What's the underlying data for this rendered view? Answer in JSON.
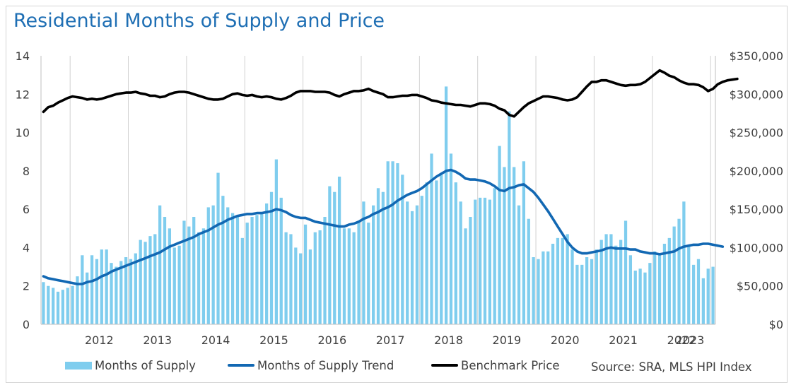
{
  "title": "Residential Months of Supply and Price",
  "source": "Source: SRA, MLS HPI Index",
  "chart_data": {
    "type": "bar+line",
    "title": "Residential Months of Supply and Price",
    "x_ticks": [
      "2012",
      "2013",
      "2014",
      "2015",
      "2016",
      "2017",
      "2018",
      "2019",
      "2020",
      "2021",
      "2022",
      "2023"
    ],
    "y_left": {
      "range": [
        0,
        14
      ],
      "ticks": [
        "0",
        "2",
        "4",
        "6",
        "8",
        "10",
        "12",
        "14"
      ]
    },
    "y_right": {
      "range": [
        0,
        350000
      ],
      "ticks": [
        "$0",
        "$50,000",
        "$100,000",
        "$150,000",
        "$200,000",
        "$250,000",
        "$300,000",
        "$350,000"
      ]
    },
    "grid": "vertical lines at year boundaries",
    "legend_position": "bottom",
    "colors": {
      "supply": "#7fcdee",
      "trend": "#1268b3",
      "price": "#000000",
      "grid": "#d0d0d0",
      "axis": "#bfbfbf"
    },
    "series": [
      {
        "name": "Months of Supply",
        "type": "bar",
        "axis": "left",
        "values": [
          2.2,
          2.0,
          1.9,
          1.7,
          1.8,
          1.9,
          2.0,
          2.5,
          3.6,
          2.7,
          3.6,
          3.4,
          3.9,
          3.9,
          3.2,
          3.0,
          3.3,
          3.5,
          3.4,
          3.7,
          4.4,
          4.3,
          4.6,
          4.7,
          6.2,
          5.6,
          5.0,
          4.0,
          4.1,
          5.4,
          5.1,
          5.6,
          4.8,
          5.0,
          6.1,
          6.2,
          7.9,
          6.7,
          6.1,
          5.8,
          5.6,
          4.5,
          5.3,
          5.6,
          5.7,
          5.8,
          6.3,
          6.9,
          8.6,
          6.6,
          4.8,
          4.7,
          4.0,
          3.7,
          5.2,
          3.9,
          4.8,
          4.9,
          5.6,
          7.2,
          6.9,
          7.7,
          5.0,
          5.0,
          4.8,
          5.4,
          6.4,
          5.3,
          6.2,
          7.1,
          6.9,
          8.5,
          8.5,
          8.4,
          7.8,
          6.4,
          5.9,
          6.2,
          6.7,
          7.4,
          8.9,
          7.5,
          7.8,
          12.4,
          8.9,
          7.4,
          6.4,
          5.0,
          5.6,
          6.5,
          6.6,
          6.6,
          6.5,
          7.1,
          9.3,
          8.2,
          11.1,
          8.2,
          6.2,
          8.5,
          5.5,
          3.5,
          3.4,
          3.8,
          3.8,
          4.2,
          4.5,
          4.5,
          4.7,
          3.9,
          3.1,
          3.1,
          3.5,
          3.4,
          3.9,
          4.4,
          4.7,
          4.7,
          4.1,
          4.4,
          5.4,
          3.6,
          2.8,
          2.9,
          2.7,
          3.2,
          3.8,
          3.7,
          4.2,
          4.5,
          5.1,
          5.5,
          6.4,
          4.1,
          3.1,
          3.4,
          2.4,
          2.9,
          3.0
        ]
      },
      {
        "name": "Months of Supply Trend",
        "type": "line",
        "axis": "left",
        "values": [
          2.5,
          2.4,
          2.35,
          2.3,
          2.25,
          2.2,
          2.15,
          2.1,
          2.1,
          2.2,
          2.25,
          2.35,
          2.5,
          2.6,
          2.75,
          2.85,
          2.95,
          3.05,
          3.15,
          3.25,
          3.35,
          3.45,
          3.55,
          3.65,
          3.75,
          3.9,
          4.05,
          4.15,
          4.25,
          4.35,
          4.45,
          4.55,
          4.7,
          4.8,
          4.9,
          5.05,
          5.2,
          5.3,
          5.45,
          5.55,
          5.65,
          5.7,
          5.75,
          5.75,
          5.8,
          5.8,
          5.85,
          5.9,
          6.0,
          5.95,
          5.85,
          5.7,
          5.6,
          5.55,
          5.55,
          5.45,
          5.35,
          5.3,
          5.25,
          5.2,
          5.15,
          5.1,
          5.1,
          5.2,
          5.25,
          5.35,
          5.5,
          5.6,
          5.75,
          5.85,
          6.0,
          6.1,
          6.25,
          6.45,
          6.6,
          6.75,
          6.85,
          6.95,
          7.1,
          7.3,
          7.5,
          7.7,
          7.85,
          8.0,
          8.05,
          7.95,
          7.8,
          7.6,
          7.55,
          7.55,
          7.5,
          7.45,
          7.35,
          7.2,
          7.0,
          6.95,
          7.1,
          7.15,
          7.25,
          7.3,
          7.1,
          6.9,
          6.6,
          6.25,
          5.9,
          5.5,
          5.1,
          4.7,
          4.3,
          4.0,
          3.8,
          3.7,
          3.7,
          3.75,
          3.8,
          3.85,
          3.95,
          4.0,
          3.95,
          3.95,
          3.95,
          3.9,
          3.9,
          3.8,
          3.75,
          3.7,
          3.7,
          3.65,
          3.7,
          3.75,
          3.8,
          3.95,
          4.05,
          4.1,
          4.15,
          4.15,
          4.2,
          4.2,
          4.15,
          4.1,
          4.05
        ]
      },
      {
        "name": "Benchmark Price",
        "type": "line",
        "axis": "right",
        "values": [
          277000,
          283000,
          285000,
          289000,
          292000,
          295000,
          297000,
          296000,
          295000,
          293000,
          294000,
          293000,
          294000,
          296000,
          298000,
          300000,
          301000,
          302000,
          302000,
          303000,
          301000,
          300000,
          298000,
          298000,
          296000,
          297000,
          300000,
          302000,
          303000,
          303000,
          302000,
          300000,
          298000,
          296000,
          294000,
          293000,
          293000,
          294000,
          297000,
          300000,
          301000,
          299000,
          298000,
          299000,
          297000,
          296000,
          297000,
          296000,
          294000,
          293000,
          295000,
          298000,
          302000,
          304000,
          304000,
          304000,
          303000,
          303000,
          303000,
          302000,
          299000,
          297000,
          300000,
          302000,
          304000,
          304000,
          305000,
          307000,
          304000,
          302000,
          300000,
          296000,
          296000,
          297000,
          298000,
          298000,
          299000,
          299000,
          297000,
          295000,
          292000,
          291000,
          289000,
          288000,
          287000,
          286000,
          286000,
          285000,
          284000,
          286000,
          288000,
          288000,
          287000,
          285000,
          281000,
          279000,
          273000,
          271000,
          277000,
          283000,
          288000,
          291000,
          294000,
          297000,
          297000,
          296000,
          295000,
          293000,
          292000,
          293000,
          296000,
          303000,
          310000,
          316000,
          316000,
          318000,
          318000,
          316000,
          314000,
          312000,
          311000,
          312000,
          312000,
          313000,
          316000,
          321000,
          326000,
          331000,
          328000,
          324000,
          322000,
          318000,
          315000,
          313000,
          313000,
          312000,
          309000,
          304000,
          307000,
          313000,
          316000,
          318000,
          319000,
          320000
        ]
      }
    ]
  },
  "legend": [
    {
      "label": "Months of Supply",
      "kind": "bar",
      "color": "#7fcdee"
    },
    {
      "label": "Months of Supply Trend",
      "kind": "line",
      "color": "#1268b3"
    },
    {
      "label": "Benchmark Price",
      "kind": "line",
      "color": "#000000"
    }
  ]
}
